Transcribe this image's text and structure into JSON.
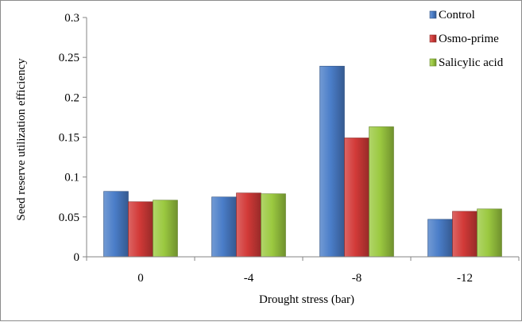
{
  "chart_data": {
    "type": "bar",
    "title": "",
    "xlabel": "Drought stress (bar)",
    "ylabel": "Seed reserve utilization efficiency",
    "categories": [
      "0",
      "-4",
      "-8",
      "-12"
    ],
    "ylim": [
      0,
      0.3
    ],
    "yticks": [
      0,
      0.05,
      0.1,
      0.15,
      0.2,
      0.25,
      0.3
    ],
    "ytick_labels": [
      "0",
      "0.05",
      "0.1",
      "0.15",
      "0.2",
      "0.25",
      "0.3"
    ],
    "grid": false,
    "legend_position": "top-right",
    "series": [
      {
        "name": "Control",
        "color": "#4a7dc8",
        "values": [
          0.082,
          0.075,
          0.239,
          0.047
        ]
      },
      {
        "name": "Osmo-prime",
        "color": "#d23a38",
        "values": [
          0.069,
          0.08,
          0.149,
          0.057
        ]
      },
      {
        "name": "Salicylic acid",
        "color": "#9bc940",
        "values": [
          0.071,
          0.079,
          0.163,
          0.06
        ]
      }
    ]
  }
}
